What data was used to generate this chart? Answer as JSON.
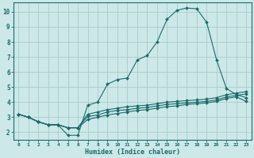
{
  "xlabel": "Humidex (Indice chaleur)",
  "bg_color": "#cce8e8",
  "grid_color": "#aacccc",
  "line_color": "#1a6b6b",
  "xlim": [
    -0.5,
    23.5
  ],
  "ylim": [
    1.5,
    10.6
  ],
  "xticks": [
    0,
    1,
    2,
    3,
    4,
    5,
    6,
    7,
    8,
    9,
    10,
    11,
    12,
    13,
    14,
    15,
    16,
    17,
    18,
    19,
    20,
    21,
    22,
    23
  ],
  "yticks": [
    2,
    3,
    4,
    5,
    6,
    7,
    8,
    9,
    10
  ],
  "lines": [
    {
      "x": [
        0,
        1,
        2,
        3,
        4,
        5,
        6,
        7,
        8,
        9,
        10,
        11,
        12,
        13,
        14,
        15,
        16,
        17,
        18,
        19,
        20,
        21,
        22,
        23
      ],
      "y": [
        3.2,
        3.0,
        2.7,
        2.5,
        2.5,
        1.8,
        1.8,
        3.8,
        4.0,
        5.2,
        5.5,
        5.6,
        6.8,
        7.1,
        8.0,
        9.5,
        10.1,
        10.25,
        10.2,
        9.3,
        6.8,
        4.9,
        4.5,
        4.3
      ]
    },
    {
      "x": [
        0,
        1,
        2,
        3,
        4,
        5,
        6,
        7,
        8,
        9,
        10,
        11,
        12,
        13,
        14,
        15,
        16,
        17,
        18,
        19,
        20,
        21,
        22,
        23
      ],
      "y": [
        3.2,
        3.0,
        2.7,
        2.5,
        2.5,
        2.3,
        2.3,
        3.2,
        3.35,
        3.5,
        3.6,
        3.7,
        3.75,
        3.8,
        3.9,
        4.0,
        4.05,
        4.1,
        4.15,
        4.2,
        4.3,
        4.5,
        4.6,
        4.7
      ]
    },
    {
      "x": [
        0,
        1,
        2,
        3,
        4,
        5,
        6,
        7,
        8,
        9,
        10,
        11,
        12,
        13,
        14,
        15,
        16,
        17,
        18,
        19,
        20,
        21,
        22,
        23
      ],
      "y": [
        3.2,
        3.0,
        2.7,
        2.5,
        2.5,
        2.3,
        2.3,
        3.05,
        3.15,
        3.35,
        3.45,
        3.5,
        3.6,
        3.65,
        3.75,
        3.85,
        3.9,
        3.95,
        4.0,
        4.05,
        4.15,
        4.35,
        4.45,
        4.55
      ]
    },
    {
      "x": [
        0,
        1,
        2,
        3,
        4,
        5,
        6,
        7,
        8,
        9,
        10,
        11,
        12,
        13,
        14,
        15,
        16,
        17,
        18,
        19,
        20,
        21,
        22,
        23
      ],
      "y": [
        3.2,
        3.0,
        2.7,
        2.5,
        2.5,
        2.3,
        2.3,
        2.85,
        3.0,
        3.15,
        3.25,
        3.35,
        3.45,
        3.5,
        3.6,
        3.7,
        3.75,
        3.85,
        3.9,
        3.95,
        4.05,
        4.25,
        4.35,
        4.05
      ]
    }
  ]
}
